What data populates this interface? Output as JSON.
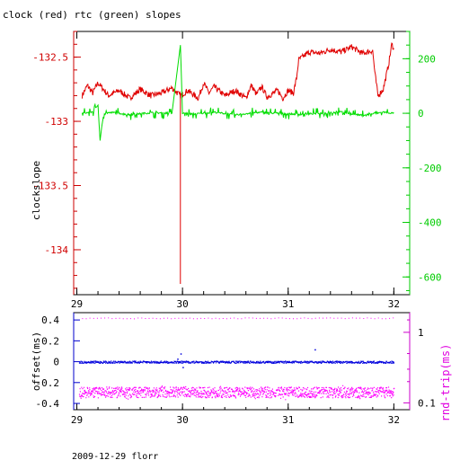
{
  "title": "clock (red) rtc (green) slopes",
  "footer": "2009-12-29 florr",
  "colors": {
    "clock": "#e00000",
    "rtc": "#00dd00",
    "offset": "#0000dd",
    "rtt": "#ff00ff",
    "left_axis_top": "#cc0000",
    "right_axis_top": "#00cc00",
    "left_axis_bottom": "#0000cc",
    "right_axis_bottom": "#cc00cc"
  },
  "chart_data": [
    {
      "type": "line",
      "title": "clock (red) rtc (green) slopes",
      "ylabel": "clockslope",
      "xlim": [
        28.97,
        32.15
      ],
      "x_ticks": [
        "29",
        "30",
        "31",
        "32"
      ],
      "ylim_left": [
        -134.35,
        -132.3
      ],
      "y_ticks_left": [
        "-132.5",
        "-133",
        "-133.5",
        "-134"
      ],
      "ylim_right": [
        -665,
        300
      ],
      "y_ticks_right": [
        "200",
        "0",
        "-200",
        "-400",
        "-600"
      ],
      "series": [
        {
          "name": "clock",
          "axis": "left",
          "x": [
            29.05,
            29.1,
            29.15,
            29.2,
            29.3,
            29.4,
            29.5,
            29.6,
            29.7,
            29.8,
            29.9,
            29.98,
            30.05,
            30.15,
            30.2,
            30.25,
            30.3,
            30.4,
            30.5,
            30.6,
            30.65,
            30.7,
            30.75,
            30.8,
            30.9,
            30.95,
            31.0,
            31.05,
            31.08,
            31.1,
            31.2,
            31.3,
            31.4,
            31.5,
            31.6,
            31.7,
            31.8,
            31.82,
            31.85,
            31.9,
            31.95,
            31.98,
            32.0
          ],
          "y": [
            -132.8,
            -132.72,
            -132.78,
            -132.7,
            -132.8,
            -132.76,
            -132.82,
            -132.75,
            -132.8,
            -132.78,
            -132.74,
            -132.8,
            -132.76,
            -132.82,
            -132.7,
            -132.78,
            -132.73,
            -132.8,
            -132.76,
            -132.82,
            -132.72,
            -132.79,
            -132.73,
            -132.81,
            -132.76,
            -132.82,
            -132.76,
            -132.78,
            -132.66,
            -132.52,
            -132.46,
            -132.47,
            -132.44,
            -132.46,
            -132.42,
            -132.47,
            -132.45,
            -132.62,
            -132.8,
            -132.75,
            -132.56,
            -132.4,
            -132.43
          ]
        },
        {
          "name": "rtc",
          "axis": "right",
          "x": [
            29.05,
            29.15,
            29.2,
            29.22,
            29.25,
            29.35,
            29.5,
            29.7,
            29.9,
            29.98,
            30.0,
            30.1,
            30.3,
            30.5,
            30.7,
            30.9,
            31.1,
            31.3,
            31.5,
            31.7,
            31.9,
            32.0
          ],
          "y": [
            0,
            5,
            30,
            -100,
            0,
            3,
            -5,
            2,
            0,
            250,
            0,
            -3,
            4,
            -6,
            3,
            0,
            -4,
            0,
            5,
            -8,
            4,
            0
          ]
        }
      ]
    },
    {
      "type": "scatter",
      "ylabel": "offset(ms)",
      "y2label": "rnd-trip(ms)",
      "xlim": [
        28.97,
        32.15
      ],
      "x_ticks": [
        "29",
        "30",
        "31",
        "32"
      ],
      "ylim_left": [
        -0.46,
        0.47
      ],
      "y_ticks_left": [
        "0.4",
        "0.2",
        "0",
        "-0.2",
        "-0.4"
      ],
      "ylim_right_log": [
        0.08,
        1.9
      ],
      "y_ticks_right": [
        "1",
        "0.1"
      ],
      "series": [
        {
          "name": "offset",
          "axis": "left",
          "y_range": [
            -0.01,
            0.01
          ],
          "outliers": [
            [
              29.95,
              0.03
            ],
            [
              30.0,
              -0.05
            ],
            [
              29.98,
              0.08
            ],
            [
              31.25,
              0.12
            ]
          ]
        },
        {
          "name": "rnd-trip",
          "axis": "right",
          "y_band": [
            0.12,
            0.17
          ],
          "top_sparse": 1.6
        }
      ]
    }
  ]
}
